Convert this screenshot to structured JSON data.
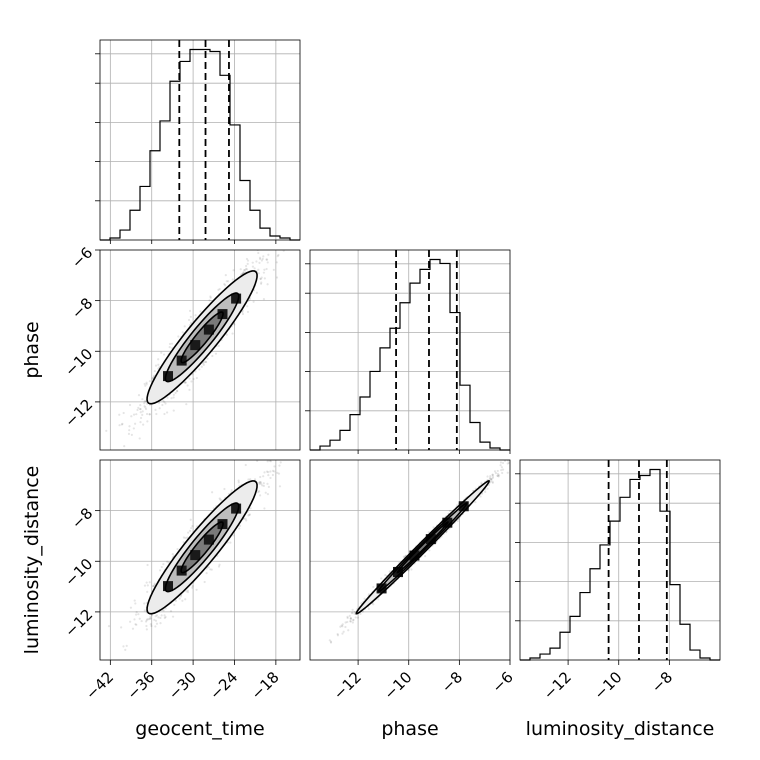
{
  "chart_data": {
    "type": "corner",
    "parameters": [
      "geocent_time",
      "phase",
      "luminosity_distance"
    ],
    "ranges": {
      "geocent_time": [
        -43.5,
        -14.5
      ],
      "phase": [
        -13.9,
        -6.0
      ],
      "luminosity_distance": [
        -13.9,
        -6.0
      ]
    },
    "ticks": {
      "geocent_time": [
        -42,
        -36,
        -30,
        -24,
        -18
      ],
      "phase_x": [
        -12,
        -10,
        -8,
        -6
      ],
      "phase_y": [
        -6,
        -8,
        -10,
        -12
      ],
      "luminosity_distance_x": [
        -12,
        -10,
        -8
      ],
      "luminosity_distance_y": [
        -8,
        -10,
        -12
      ]
    },
    "tick_labels": {
      "geocent_time": [
        "−42",
        "−36",
        "−30",
        "−24",
        "−18"
      ],
      "phase_x": [
        "−12",
        "−10",
        "−8",
        "−6"
      ],
      "phase_y": [
        "−6",
        "−8",
        "−10",
        "−12"
      ],
      "luminosity_distance_x": [
        "−12",
        "−10",
        "−8"
      ],
      "luminosity_distance_y": [
        "−8",
        "−10",
        "−12"
      ]
    },
    "xlabels": [
      "geocent_time",
      "phase",
      "luminosity_distance"
    ],
    "ylabels": [
      "",
      "phase",
      "luminosity_distance"
    ],
    "quantiles": {
      "geocent_time": [
        -32.0,
        -28.2,
        -24.8
      ],
      "phase": [
        -10.5,
        -9.2,
        -8.1
      ],
      "luminosity_distance": [
        -10.4,
        -9.2,
        -8.1
      ]
    },
    "histograms": {
      "geocent_time": {
        "bin_edges": [
          -43.5,
          -42.05,
          -40.6,
          -39.15,
          -37.7,
          -36.25,
          -34.8,
          -33.35,
          -31.9,
          -30.45,
          -29.0,
          -27.55,
          -26.1,
          -24.65,
          -23.2,
          -21.75,
          -20.3,
          -18.85,
          -17.4,
          -15.95,
          -14.5
        ],
        "counts": [
          0,
          1,
          5,
          15,
          27,
          45,
          60,
          80,
          90,
          96,
          96,
          95,
          83,
          58,
          30,
          15,
          6,
          2,
          1,
          0
        ]
      },
      "phase": {
        "bin_edges": [
          -13.9,
          -13.505,
          -13.11,
          -12.715,
          -12.32,
          -11.925,
          -11.53,
          -11.135,
          -10.74,
          -10.345,
          -9.95,
          -9.555,
          -9.16,
          -8.765,
          -8.37,
          -7.975,
          -7.58,
          -7.185,
          -6.79,
          -6.395,
          -6.0
        ],
        "counts": [
          0,
          2,
          5,
          10,
          18,
          27,
          40,
          52,
          62,
          75,
          85,
          92,
          97,
          95,
          70,
          33,
          14,
          4,
          1,
          0
        ]
      },
      "luminosity_distance": {
        "bin_edges": [
          -13.9,
          -13.505,
          -13.11,
          -12.715,
          -12.32,
          -11.925,
          -11.53,
          -11.135,
          -10.74,
          -10.345,
          -9.95,
          -9.555,
          -9.16,
          -8.765,
          -8.37,
          -7.975,
          -7.58,
          -7.185,
          -6.79,
          -6.395,
          -6.0
        ],
        "counts": [
          0,
          1,
          3,
          6,
          14,
          22,
          34,
          46,
          58,
          70,
          82,
          91,
          93,
          96,
          75,
          38,
          18,
          5,
          1,
          0
        ]
      }
    },
    "joint": {
      "phase_vs_geocent_time": {
        "mean": [
          -28.7,
          -9.45
        ],
        "std": [
          3.8,
          1.25
        ],
        "corr": 0.93
      },
      "luminosity_distance_vs_geocent_time": {
        "mean": [
          -28.7,
          -9.45
        ],
        "std": [
          3.8,
          1.25
        ],
        "corr": 0.93
      },
      "luminosity_distance_vs_phase": {
        "mean": [
          -9.45,
          -9.45
        ],
        "std": [
          1.25,
          1.25
        ],
        "corr": 0.995
      }
    },
    "grid": true
  }
}
